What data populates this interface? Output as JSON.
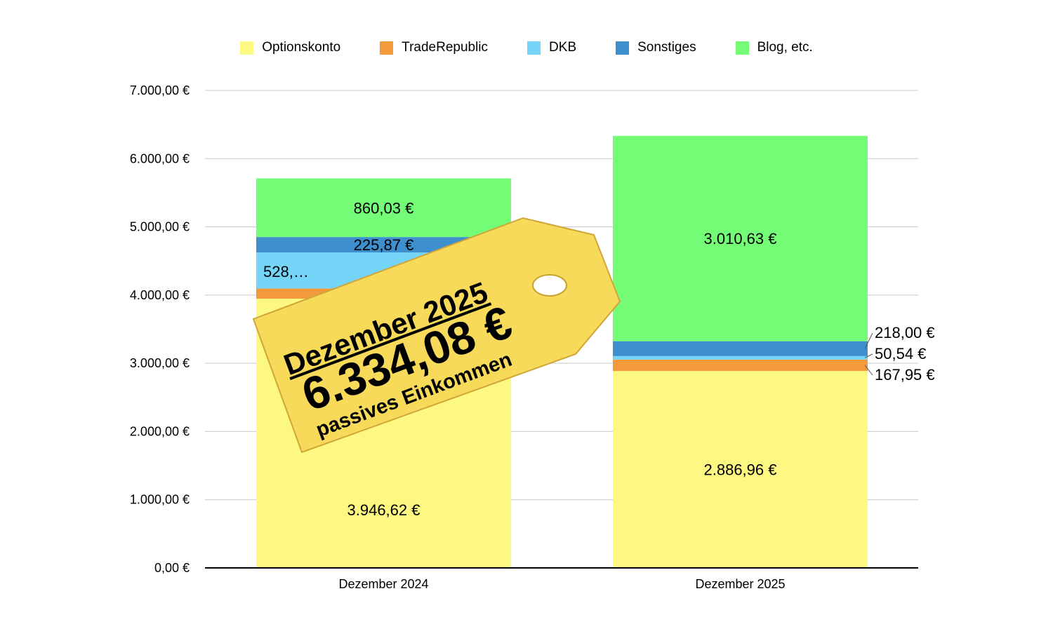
{
  "chart_data": {
    "type": "bar",
    "stacked": true,
    "categories": [
      "Dezember 2024",
      "Dezember 2025"
    ],
    "series": [
      {
        "name": "Optionskonto",
        "color": "#FDF881",
        "values": [
          3946.62,
          2886.96
        ],
        "labels": [
          "3.946,62 €",
          "2.886,96 €"
        ]
      },
      {
        "name": "TradeRepublic",
        "color": "#F39B3B",
        "values": [
          150,
          167.95
        ],
        "labels": [
          "",
          "167,95 €"
        ]
      },
      {
        "name": "DKB",
        "color": "#74D5F9",
        "values": [
          528,
          50.54
        ],
        "labels": [
          "528,…",
          "50,54 €"
        ]
      },
      {
        "name": "Sonstiges",
        "color": "#3D8FCE",
        "values": [
          225.87,
          218.0
        ],
        "labels": [
          "225,87 €",
          "218,00 €"
        ]
      },
      {
        "name": "Blog, etc.",
        "color": "#74FC77",
        "values": [
          860.03,
          3010.63
        ],
        "labels": [
          "860,03 €",
          "3.010,63 €"
        ]
      }
    ],
    "ylim": [
      0,
      7000
    ],
    "yticks": [
      "0,00 €",
      "1.000,00 €",
      "2.000,00 €",
      "3.000,00 €",
      "4.000,00 €",
      "5.000,00 €",
      "6.000,00 €",
      "7.000,00 €"
    ],
    "grid": true,
    "legend": "top"
  },
  "tag": {
    "line1": "Dezember 2025",
    "line2": "6.334,08 €",
    "line3": "passives Einkommen",
    "color": "#F8DA5A"
  }
}
